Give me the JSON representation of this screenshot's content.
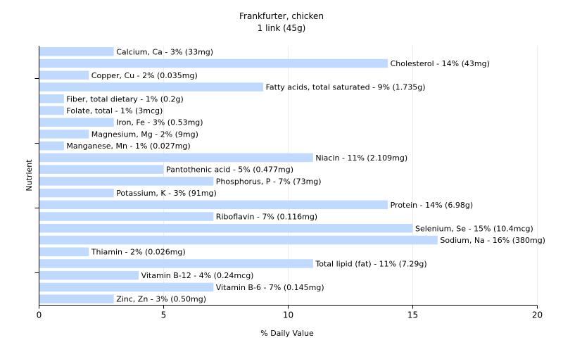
{
  "chart_data": {
    "type": "bar",
    "orientation": "horizontal",
    "title": "Frankfurter, chicken",
    "subtitle": "1 link (45g)",
    "xlabel": "% Daily Value",
    "ylabel": "Nutrient",
    "xlim": [
      0,
      20
    ],
    "xticks": [
      0,
      5,
      10,
      15,
      20
    ],
    "grid": true,
    "bar_color": "#c0daff",
    "categories": [
      "Calcium, Ca",
      "Cholesterol",
      "Copper, Cu",
      "Fatty acids, total saturated",
      "Fiber, total dietary",
      "Folate, total",
      "Iron, Fe",
      "Magnesium, Mg",
      "Manganese, Mn",
      "Niacin",
      "Pantothenic acid",
      "Phosphorus, P",
      "Potassium, K",
      "Protein",
      "Riboflavin",
      "Selenium, Se",
      "Sodium, Na",
      "Thiamin",
      "Total lipid (fat)",
      "Vitamin B-12",
      "Vitamin B-6",
      "Zinc, Zn"
    ],
    "values": [
      3,
      14,
      2,
      9,
      1,
      1,
      3,
      2,
      1,
      11,
      5,
      7,
      3,
      14,
      7,
      15,
      16,
      2,
      11,
      4,
      7,
      3
    ],
    "labels": [
      "Calcium, Ca - 3% (33mg)",
      "Cholesterol - 14% (43mg)",
      "Copper, Cu - 2% (0.035mg)",
      "Fatty acids, total saturated - 9% (1.735g)",
      "Fiber, total dietary - 1% (0.2g)",
      "Folate, total - 1% (3mcg)",
      "Iron, Fe - 3% (0.53mg)",
      "Magnesium, Mg - 2% (9mg)",
      "Manganese, Mn - 1% (0.027mg)",
      "Niacin - 11% (2.109mg)",
      "Pantothenic acid - 5% (0.477mg)",
      "Phosphorus, P - 7% (73mg)",
      "Potassium, K - 3% (91mg)",
      "Protein - 14% (6.98g)",
      "Riboflavin - 7% (0.116mg)",
      "Selenium, Se - 15% (10.4mcg)",
      "Sodium, Na - 16% (380mg)",
      "Thiamin - 2% (0.026mg)",
      "Total lipid (fat) - 11% (7.29g)",
      "Vitamin B-12 - 4% (0.24mcg)",
      "Vitamin B-6 - 7% (0.145mg)",
      "Zinc, Zn - 3% (0.50mg)"
    ]
  }
}
